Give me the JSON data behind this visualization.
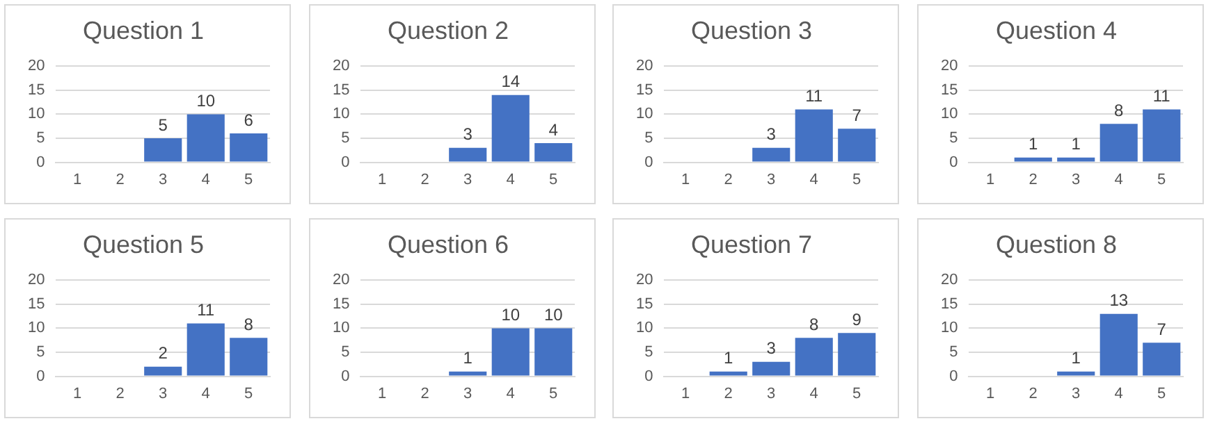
{
  "chart_data": [
    {
      "type": "bar",
      "title": "Question 1",
      "categories": [
        "1",
        "2",
        "3",
        "4",
        "5"
      ],
      "values": [
        0,
        0,
        5,
        10,
        6
      ],
      "value_labels": [
        null,
        null,
        "5",
        "10",
        "6"
      ],
      "color": "#4472c4",
      "ylim": [
        0,
        20
      ],
      "yticks": [
        0,
        5,
        10,
        15,
        20
      ],
      "grid": "y",
      "legend": false
    },
    {
      "type": "bar",
      "title": "Question 2",
      "categories": [
        "1",
        "2",
        "3",
        "4",
        "5"
      ],
      "values": [
        0,
        0,
        3,
        14,
        4
      ],
      "value_labels": [
        null,
        null,
        "3",
        "14",
        "4"
      ],
      "color": "#4472c4",
      "ylim": [
        0,
        20
      ],
      "yticks": [
        0,
        5,
        10,
        15,
        20
      ],
      "grid": "y",
      "legend": false
    },
    {
      "type": "bar",
      "title": "Question 3",
      "categories": [
        "1",
        "2",
        "3",
        "4",
        "5"
      ],
      "values": [
        0,
        0,
        3,
        11,
        7
      ],
      "value_labels": [
        null,
        null,
        "3",
        "11",
        "7"
      ],
      "color": "#4472c4",
      "ylim": [
        0,
        20
      ],
      "yticks": [
        0,
        5,
        10,
        15,
        20
      ],
      "grid": "y",
      "legend": false
    },
    {
      "type": "bar",
      "title": "Question 4",
      "categories": [
        "1",
        "2",
        "3",
        "4",
        "5"
      ],
      "values": [
        0,
        1,
        1,
        8,
        11
      ],
      "value_labels": [
        null,
        "1",
        "1",
        "8",
        "11"
      ],
      "color": "#4472c4",
      "ylim": [
        0,
        20
      ],
      "yticks": [
        0,
        5,
        10,
        15,
        20
      ],
      "grid": "y",
      "legend": false
    },
    {
      "type": "bar",
      "title": "Question 5",
      "categories": [
        "1",
        "2",
        "3",
        "4",
        "5"
      ],
      "values": [
        0,
        0,
        2,
        11,
        8
      ],
      "value_labels": [
        null,
        null,
        "2",
        "11",
        "8"
      ],
      "color": "#4472c4",
      "ylim": [
        0,
        20
      ],
      "yticks": [
        0,
        5,
        10,
        15,
        20
      ],
      "grid": "y",
      "legend": false
    },
    {
      "type": "bar",
      "title": "Question 6",
      "categories": [
        "1",
        "2",
        "3",
        "4",
        "5"
      ],
      "values": [
        0,
        0,
        1,
        10,
        10
      ],
      "value_labels": [
        null,
        null,
        "1",
        "10",
        "10"
      ],
      "color": "#4472c4",
      "ylim": [
        0,
        20
      ],
      "yticks": [
        0,
        5,
        10,
        15,
        20
      ],
      "grid": "y",
      "legend": false
    },
    {
      "type": "bar",
      "title": "Question 7",
      "categories": [
        "1",
        "2",
        "3",
        "4",
        "5"
      ],
      "values": [
        0,
        1,
        3,
        8,
        9
      ],
      "value_labels": [
        null,
        "1",
        "3",
        "8",
        "9"
      ],
      "color": "#4472c4",
      "ylim": [
        0,
        20
      ],
      "yticks": [
        0,
        5,
        10,
        15,
        20
      ],
      "grid": "y",
      "legend": false
    },
    {
      "type": "bar",
      "title": "Question 8",
      "categories": [
        "1",
        "2",
        "3",
        "4",
        "5"
      ],
      "values": [
        0,
        0,
        1,
        13,
        7
      ],
      "value_labels": [
        null,
        null,
        "1",
        "13",
        "7"
      ],
      "color": "#4472c4",
      "ylim": [
        0,
        20
      ],
      "yticks": [
        0,
        5,
        10,
        15,
        20
      ],
      "grid": "y",
      "legend": false
    }
  ]
}
